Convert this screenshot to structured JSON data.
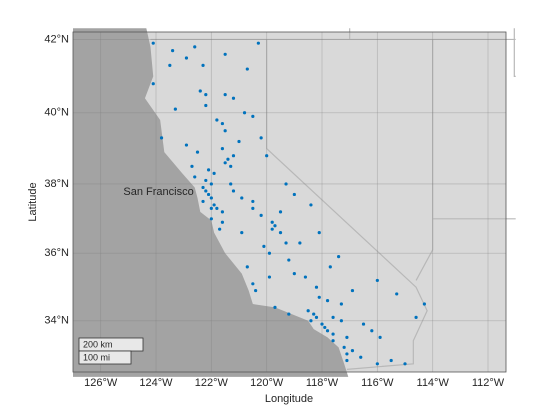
{
  "chart_data": {
    "type": "scatter",
    "projection": "mercator",
    "xlabel": "Longitude",
    "ylabel": "Latitude",
    "xlim": [
      -127,
      -111.35
    ],
    "ylim": [
      32.45,
      42.2
    ],
    "xticks": [
      {
        "value": -126,
        "label": "126°W"
      },
      {
        "value": -124,
        "label": "124°W"
      },
      {
        "value": -122,
        "label": "122°W"
      },
      {
        "value": -120,
        "label": "120°W"
      },
      {
        "value": -118,
        "label": "118°W"
      },
      {
        "value": -116,
        "label": "116°W"
      },
      {
        "value": -114,
        "label": "114°W"
      },
      {
        "value": -112,
        "label": "112°W"
      }
    ],
    "yticks": [
      {
        "value": 34,
        "label": "34°N"
      },
      {
        "value": 36,
        "label": "36°N"
      },
      {
        "value": 38,
        "label": "38°N"
      },
      {
        "value": 40,
        "label": "40°N"
      },
      {
        "value": 42,
        "label": "42°N"
      }
    ],
    "grid": true,
    "color": "#0072bd",
    "annotation": {
      "text": "San Francisco",
      "x": -122.42,
      "y": 37.77
    },
    "scale_bar": [
      "200 km",
      "100 mi"
    ],
    "x": [
      -124.1,
      -123.4,
      -122.6,
      -122.9,
      -122.3,
      -121.5,
      -120.7,
      -120.3,
      -124.1,
      -122.4,
      -122.2,
      -122.2,
      -121.2,
      -120.8,
      -121.8,
      -121.6,
      -121.5,
      -123.8,
      -121.0,
      -122.9,
      -121.6,
      -122.5,
      -121.2,
      -121.4,
      -121.5,
      -121.3,
      -122.7,
      -122.1,
      -121.9,
      -122.6,
      -122.2,
      -122.0,
      -121.3,
      -122.3,
      -122.2,
      -121.2,
      -122.1,
      -122.0,
      -122.3,
      -121.9,
      -122.0,
      -121.8,
      -121.6,
      -122.0,
      -121.6,
      -121.7,
      -120.9,
      -120.9,
      -120.5,
      -120.5,
      -120.2,
      -119.8,
      -119.7,
      -119.8,
      -119.5,
      -119.3,
      -120.1,
      -119.9,
      -119.2,
      -120.7,
      -119.0,
      -119.9,
      -118.6,
      -120.5,
      -118.2,
      -120.4,
      -118.1,
      -117.8,
      -117.3,
      -119.7,
      -118.5,
      -119.2,
      -118.3,
      -118.2,
      -117.6,
      -118.4,
      -117.3,
      -118.0,
      -116.5,
      -117.9,
      -117.8,
      -116.2,
      -117.6,
      -117.1,
      -117.6,
      -117.2,
      -116.9,
      -117.1,
      -116.6,
      -117.1,
      -116.0,
      -115.5,
      -115.0,
      -115.9,
      -114.6,
      -114.3,
      -116.9,
      -117.7,
      -117.4,
      -118.1,
      -118.4,
      -119.0,
      -119.3,
      -120.0,
      -120.2,
      -120.5,
      -121.5,
      -123.5,
      -123.3,
      -119.5,
      -118.8,
      -116.0,
      -115.3
    ],
    "values": [
      41.9,
      41.7,
      41.8,
      41.5,
      41.3,
      41.6,
      41.2,
      41.9,
      40.8,
      40.6,
      40.5,
      40.2,
      40.4,
      40.0,
      39.8,
      39.7,
      39.5,
      39.3,
      39.2,
      39.1,
      39.0,
      38.9,
      38.8,
      38.7,
      38.6,
      38.5,
      38.5,
      38.4,
      38.3,
      38.2,
      38.1,
      38.0,
      38.0,
      37.9,
      37.8,
      37.8,
      37.7,
      37.6,
      37.5,
      37.4,
      37.3,
      37.3,
      37.2,
      37.0,
      36.9,
      36.7,
      36.6,
      37.6,
      37.5,
      37.3,
      37.1,
      36.9,
      36.8,
      36.7,
      36.6,
      36.3,
      36.2,
      36.0,
      35.8,
      35.6,
      35.4,
      35.3,
      35.3,
      35.1,
      35.0,
      34.9,
      34.7,
      34.6,
      34.5,
      34.4,
      34.3,
      34.2,
      34.2,
      34.1,
      34.1,
      34.0,
      34.0,
      33.9,
      33.9,
      33.8,
      33.7,
      33.7,
      33.6,
      33.5,
      33.4,
      33.2,
      33.1,
      33.0,
      32.9,
      32.8,
      32.7,
      32.8,
      32.7,
      33.5,
      34.1,
      34.5,
      34.9,
      35.6,
      35.9,
      36.6,
      37.4,
      37.7,
      38.0,
      38.8,
      39.3,
      39.9,
      40.5,
      41.3,
      40.1,
      37.2,
      36.3,
      35.2,
      34.8
    ]
  }
}
